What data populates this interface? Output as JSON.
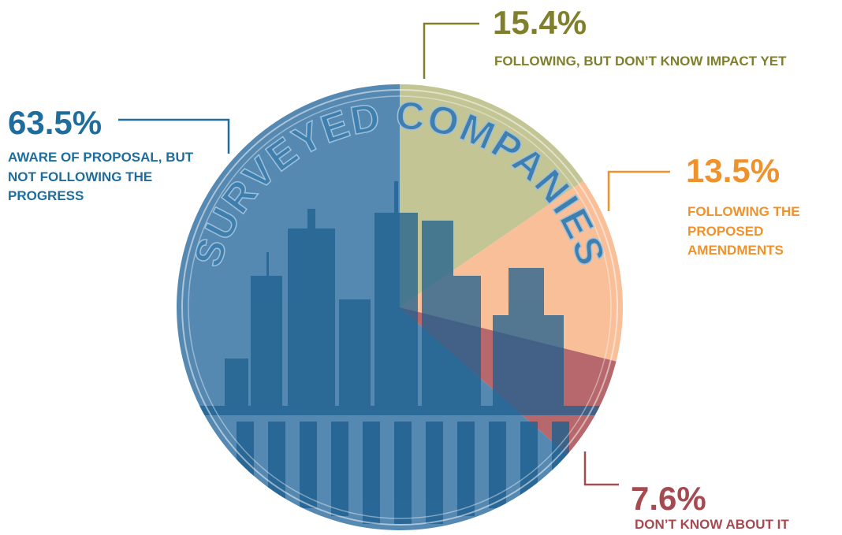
{
  "chart_data": {
    "type": "pie",
    "title": "SURVEYED COMPANIES",
    "categories": [
      "FOLLOWING, BUT DON’T KNOW IMPACT YET",
      "FOLLOWING THE PROPOSED AMENDMENTS",
      "DON’T KNOW ABOUT IT",
      "AWARE OF PROPOSAL, BUT NOT FOLLOWING THE PROGRESS"
    ],
    "values": [
      15.4,
      13.5,
      7.6,
      63.5
    ],
    "value_labels": [
      "15.4%",
      "13.5%",
      "7.6%",
      "63.5%"
    ],
    "colors": [
      "#c4c594",
      "#f9bf98",
      "#b7686c",
      "#5689b2"
    ],
    "label_colors": [
      "#7f7f2c",
      "#f0922c",
      "#a64a52",
      "#1f6d9c"
    ]
  }
}
